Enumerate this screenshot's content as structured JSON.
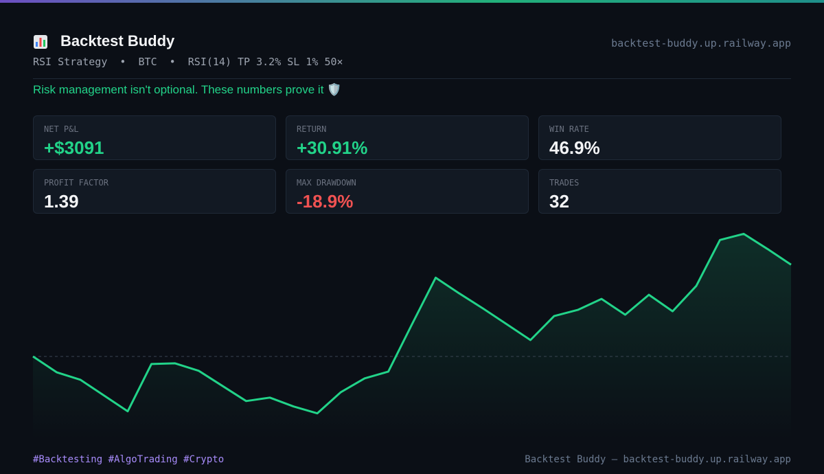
{
  "header": {
    "title": "Backtest Buddy",
    "subtitle": "RSI Strategy  •  BTC  •  RSI(14) TP 3.2% SL 1% 50×",
    "url": "backtest-buddy.up.railway.app"
  },
  "tagline": "Risk management isn't optional. These numbers prove it 🛡️",
  "stats": [
    {
      "label": "NET P&L",
      "value": "+$3091",
      "color": "#22d389"
    },
    {
      "label": "RETURN",
      "value": "+30.91%",
      "color": "#22d389"
    },
    {
      "label": "WIN RATE",
      "value": "46.9%",
      "color": "#f3f4f6"
    },
    {
      "label": "PROFIT FACTOR",
      "value": "1.39",
      "color": "#f3f4f6"
    },
    {
      "label": "MAX DRAWDOWN",
      "value": "-18.9%",
      "color": "#f05252"
    },
    {
      "label": "TRADES",
      "value": "32",
      "color": "#f3f4f6"
    }
  ],
  "chart_data": {
    "type": "line",
    "x": [
      0,
      1,
      2,
      3,
      4,
      5,
      6,
      7,
      8,
      9,
      10,
      11,
      12,
      13,
      14,
      15,
      16,
      17,
      18,
      19,
      20,
      21,
      22,
      23,
      24,
      25,
      26,
      27,
      28,
      29,
      30,
      31,
      32
    ],
    "values": [
      10000,
      9469,
      9216,
      8685,
      8154,
      9746,
      9769,
      9516,
      9008,
      8500,
      8616,
      8316,
      8085,
      8800,
      9262,
      9492,
      11084,
      12653,
      12122,
      11615,
      11084,
      10554,
      11361,
      11569,
      11938,
      11407,
      12076,
      11523,
      12376,
      13922,
      14129,
      13622,
      13091
    ],
    "baseline": 10000,
    "xlim": [
      0,
      32
    ],
    "ylim": [
      7200,
      14600
    ],
    "color": "#22d389"
  },
  "footer": {
    "tags": "#Backtesting #AlgoTrading #Crypto",
    "credit": "Backtest Buddy — backtest-buddy.up.railway.app"
  }
}
